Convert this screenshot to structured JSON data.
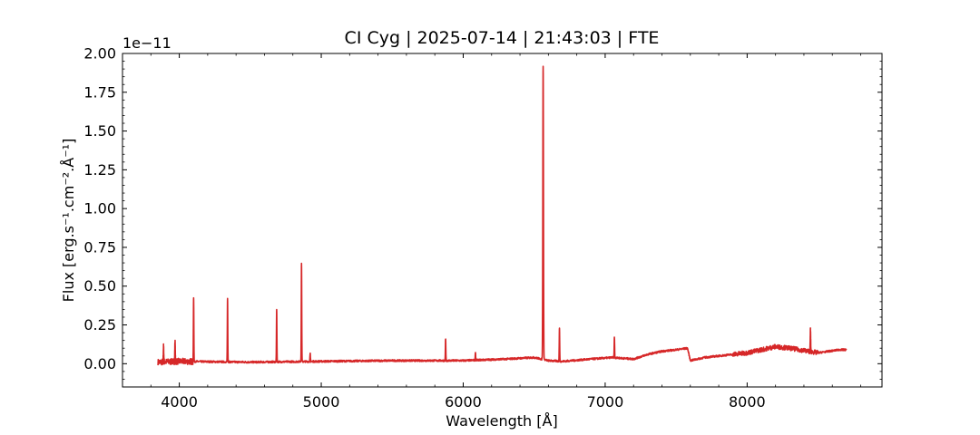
{
  "chart_data": {
    "type": "line",
    "title": "CI Cyg | 2025-07-14 | 21:43:03 | FTE",
    "xlabel": "Wavelength [Å]",
    "ylabel": "Flux [erg.s⁻¹.cm⁻².Å⁻¹]",
    "offset_text": "1e−11",
    "y_scale_factor": 1e-11,
    "xlim": [
      3600,
      8950
    ],
    "ylim": [
      -0.15,
      2.0
    ],
    "x_ticks": [
      4000,
      5000,
      6000,
      7000,
      8000
    ],
    "x_tick_labels": [
      "4000",
      "5000",
      "6000",
      "7000",
      "8000"
    ],
    "y_ticks": [
      0.0,
      0.25,
      0.5,
      0.75,
      1.0,
      1.25,
      1.5,
      1.75,
      2.0
    ],
    "y_tick_labels": [
      "0.00",
      "0.25",
      "0.50",
      "0.75",
      "1.00",
      "1.25",
      "1.50",
      "1.75",
      "2.00"
    ],
    "grid": false,
    "series": [
      {
        "color": "#d62728",
        "continuum": [
          [
            3850,
            0.01
          ],
          [
            4000,
            0.015
          ],
          [
            4500,
            0.01
          ],
          [
            5000,
            0.015
          ],
          [
            5500,
            0.02
          ],
          [
            6000,
            0.02
          ],
          [
            6300,
            0.03
          ],
          [
            6500,
            0.04
          ],
          [
            6600,
            0.02
          ],
          [
            6700,
            0.015
          ],
          [
            6900,
            0.03
          ],
          [
            7050,
            0.04
          ],
          [
            7200,
            0.03
          ],
          [
            7300,
            0.06
          ],
          [
            7400,
            0.08
          ],
          [
            7500,
            0.09
          ],
          [
            7580,
            0.1
          ],
          [
            7600,
            0.02
          ],
          [
            7700,
            0.04
          ],
          [
            8000,
            0.07
          ],
          [
            8200,
            0.11
          ],
          [
            8300,
            0.1
          ],
          [
            8500,
            0.07
          ],
          [
            8650,
            0.09
          ],
          [
            8700,
            0.09
          ]
        ],
        "emission_lines": [
          {
            "x": 3889,
            "peak": 0.11
          },
          {
            "x": 3970,
            "peak": 0.14
          },
          {
            "x": 4101,
            "peak": 0.43
          },
          {
            "x": 4340,
            "peak": 0.42
          },
          {
            "x": 4686,
            "peak": 0.35
          },
          {
            "x": 4861,
            "peak": 0.65
          },
          {
            "x": 4922,
            "peak": 0.07
          },
          {
            "x": 5876,
            "peak": 0.16
          },
          {
            "x": 6086,
            "peak": 0.07
          },
          {
            "x": 6563,
            "peak": 1.92
          },
          {
            "x": 6678,
            "peak": 0.23
          },
          {
            "x": 7065,
            "peak": 0.17
          },
          {
            "x": 8446,
            "peak": 0.22
          }
        ]
      }
    ]
  }
}
